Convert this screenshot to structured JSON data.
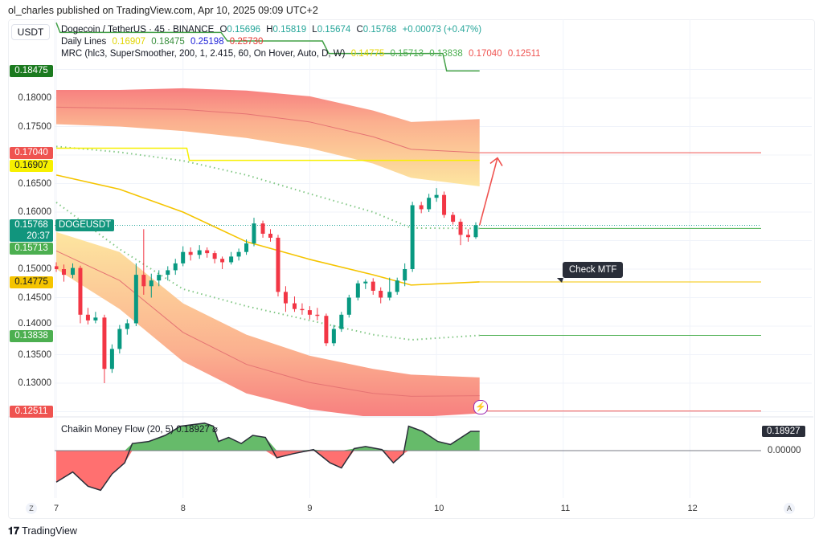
{
  "publisher": "ol_charles published on TradingView.com, Apr 10, 2025 09:09 UTC+2",
  "currency_button": "USDT",
  "symbol_legend": {
    "name": "Dogecoin / TetherUS · 45 · BINANCE",
    "o_label": "O",
    "o": "0.15696",
    "h_label": "H",
    "h": "0.15819",
    "l_label": "L",
    "l": "0.15674",
    "c_label": "C",
    "c": "0.15768",
    "change": "+0.00073 (+0.47%)"
  },
  "daily_lines_legend": {
    "name": "Daily Lines",
    "values": [
      "0.16907",
      "0.18475",
      "0.25198",
      "0.25730"
    ],
    "colors": [
      "#f2e600",
      "#388e3c",
      "#1e22d8",
      "#e53935"
    ]
  },
  "mrc_legend": {
    "name": "MRC (hlc3, SuperSmoother, 200, 1, 2.415, 60, On Hover, Auto, D, W)",
    "values": [
      "0.14775",
      "0.15713",
      "0.13838",
      "0.17040",
      "0.12511"
    ],
    "colors": [
      "#e6d600",
      "#4caf50",
      "#4caf50",
      "#ef5350",
      "#ef5350"
    ]
  },
  "symbol_tag": "DOGEUSDT",
  "annotation": "Check MTF",
  "price_axis_ticks": [
    "0.18000",
    "0.17500",
    "0.16500",
    "0.16000",
    "0.15000",
    "0.14500",
    "0.14000",
    "0.13500",
    "0.13000"
  ],
  "price_badges": [
    {
      "value": "0.18475",
      "color": "#1b7a1f"
    },
    {
      "value": "0.17040",
      "color": "#ef5350"
    },
    {
      "value": "0.16907",
      "color": "#f7f000",
      "text_color": "#131722"
    },
    {
      "value": "0.15768",
      "sub": "20:37",
      "color": "#11957d"
    },
    {
      "value": "0.15713",
      "color": "#4caf50"
    },
    {
      "value": "0.14775",
      "color": "#f5c400",
      "text_color": "#131722"
    },
    {
      "value": "0.13838",
      "color": "#4caf50"
    },
    {
      "value": "0.12511",
      "color": "#ef5350"
    }
  ],
  "time_axis_ticks": [
    "7",
    "8",
    "9",
    "10",
    "11",
    "12"
  ],
  "corner_buttons": {
    "left": "Z",
    "right": "A"
  },
  "cmf": {
    "title": "Chaikin Money Flow (20, 5)",
    "title_value": "0.18927",
    "current": "0.18927",
    "zero_label": "0.00000"
  },
  "branding": "TradingView",
  "colors": {
    "up": "#26a69a",
    "down": "#ef5350",
    "up_fill": "#089981",
    "down_fill": "#f23645",
    "cmf_pos": "#66bb6a",
    "cmf_neg": "#ff7070",
    "mean": "#f5c400",
    "arrow": "#ef5350",
    "lightning": "#9c27b0"
  },
  "chart_data": [
    {
      "type": "candlestick",
      "symbol": "DOGEUSDT",
      "interval": "45",
      "x_axis": "day of April 2025",
      "ylim": [
        0.124,
        0.186
      ],
      "xlim": [
        7,
        12.6
      ],
      "grid": true,
      "price_scale_side": "left",
      "candles_t_o_h_l_c": [
        [
          7.0,
          0.1505,
          0.1512,
          0.1495,
          0.15
        ],
        [
          7.06,
          0.15,
          0.1508,
          0.1478,
          0.149
        ],
        [
          7.13,
          0.149,
          0.151,
          0.1484,
          0.1502
        ],
        [
          7.19,
          0.1502,
          0.1506,
          0.1405,
          0.142
        ],
        [
          7.25,
          0.142,
          0.1432,
          0.1403,
          0.141
        ],
        [
          7.31,
          0.141,
          0.1425,
          0.1405,
          0.1415
        ],
        [
          7.38,
          0.1415,
          0.142,
          0.13,
          0.1325
        ],
        [
          7.44,
          0.1325,
          0.1368,
          0.1318,
          0.136
        ],
        [
          7.5,
          0.136,
          0.1402,
          0.1352,
          0.1395
        ],
        [
          7.56,
          0.1395,
          0.1412,
          0.1385,
          0.1405
        ],
        [
          7.63,
          0.1405,
          0.151,
          0.14,
          0.149
        ],
        [
          7.69,
          0.149,
          0.157,
          0.1455,
          0.147
        ],
        [
          7.75,
          0.147,
          0.1492,
          0.145,
          0.148
        ],
        [
          7.81,
          0.148,
          0.1498,
          0.147,
          0.149
        ],
        [
          7.88,
          0.149,
          0.1505,
          0.148,
          0.1498
        ],
        [
          7.94,
          0.1498,
          0.1518,
          0.149,
          0.151
        ],
        [
          8.0,
          0.151,
          0.154,
          0.1505,
          0.153
        ],
        [
          8.06,
          0.153,
          0.1538,
          0.1515,
          0.1525
        ],
        [
          8.13,
          0.1525,
          0.1542,
          0.1518,
          0.1533
        ],
        [
          8.19,
          0.1533,
          0.1538,
          0.152,
          0.1528
        ],
        [
          8.25,
          0.1528,
          0.1532,
          0.151,
          0.1518
        ],
        [
          8.31,
          0.1518,
          0.1522,
          0.15,
          0.1512
        ],
        [
          8.38,
          0.1512,
          0.153,
          0.1508,
          0.1522
        ],
        [
          8.44,
          0.1522,
          0.1536,
          0.1515,
          0.153
        ],
        [
          8.5,
          0.153,
          0.1552,
          0.1525,
          0.1545
        ],
        [
          8.56,
          0.1545,
          0.159,
          0.154,
          0.158
        ],
        [
          8.63,
          0.158,
          0.1585,
          0.1555,
          0.1562
        ],
        [
          8.69,
          0.1562,
          0.157,
          0.1548,
          0.1555
        ],
        [
          8.75,
          0.1555,
          0.156,
          0.1452,
          0.146
        ],
        [
          8.81,
          0.146,
          0.147,
          0.1425,
          0.144
        ],
        [
          8.88,
          0.144,
          0.1452,
          0.1425,
          0.143
        ],
        [
          8.94,
          0.143,
          0.144,
          0.142,
          0.1428
        ],
        [
          9.0,
          0.1428,
          0.1435,
          0.1412,
          0.142
        ],
        [
          9.06,
          0.142,
          0.1432,
          0.141,
          0.1418
        ],
        [
          9.13,
          0.1418,
          0.1422,
          0.1365,
          0.137
        ],
        [
          9.19,
          0.137,
          0.1402,
          0.1365,
          0.1395
        ],
        [
          9.25,
          0.1395,
          0.1425,
          0.139,
          0.142
        ],
        [
          9.31,
          0.142,
          0.1455,
          0.1415,
          0.145
        ],
        [
          9.38,
          0.145,
          0.148,
          0.1445,
          0.1475
        ],
        [
          9.44,
          0.1475,
          0.1482,
          0.1465,
          0.1478
        ],
        [
          9.5,
          0.1478,
          0.1484,
          0.1455,
          0.1462
        ],
        [
          9.56,
          0.1462,
          0.1468,
          0.144,
          0.145
        ],
        [
          9.63,
          0.145,
          0.1485,
          0.1445,
          0.146
        ],
        [
          9.69,
          0.146,
          0.1485,
          0.1455,
          0.148
        ],
        [
          9.75,
          0.148,
          0.151,
          0.147,
          0.15
        ],
        [
          9.81,
          0.15,
          0.1618,
          0.1495,
          0.1612
        ],
        [
          9.88,
          0.1612,
          0.1618,
          0.1598,
          0.1605
        ],
        [
          9.94,
          0.1605,
          0.1632,
          0.16,
          0.1625
        ],
        [
          10.0,
          0.1625,
          0.1642,
          0.1618,
          0.163
        ],
        [
          10.06,
          0.163,
          0.1636,
          0.159,
          0.1595
        ],
        [
          10.13,
          0.1595,
          0.16,
          0.1578,
          0.1583
        ],
        [
          10.19,
          0.1583,
          0.1588,
          0.1542,
          0.156
        ],
        [
          10.25,
          0.156,
          0.157,
          0.1548,
          0.1556
        ],
        [
          10.31,
          0.1556,
          0.1582,
          0.1553,
          0.1577
        ]
      ],
      "mrc": {
        "t": [
          7,
          7.5,
          8,
          8.5,
          9,
          9.5,
          9.8,
          10.34
        ],
        "upper_outer": [
          0.1814,
          0.1814,
          0.1817,
          0.1813,
          0.1803,
          0.1778,
          0.1758,
          0.1763
        ],
        "upper_inner": [
          0.1754,
          0.175,
          0.1742,
          0.173,
          0.1712,
          0.1685,
          0.166,
          0.1645
        ],
        "upper_mid": [
          0.1784,
          0.1782,
          0.178,
          0.1772,
          0.1758,
          0.1732,
          0.171,
          0.1704
        ],
        "mean": [
          0.1665,
          0.164,
          0.16,
          0.1548,
          0.1517,
          0.149,
          0.1472,
          0.14775
        ],
        "lower_inner": [
          0.1565,
          0.153,
          0.144,
          0.1385,
          0.1348,
          0.1325,
          0.1315,
          0.131
        ],
        "lower_mid": [
          0.1532,
          0.148,
          0.1389,
          0.1333,
          0.1301,
          0.1282,
          0.1277,
          0.1278
        ],
        "lower_outer": [
          0.15,
          0.143,
          0.1338,
          0.1282,
          0.1254,
          0.124,
          0.124,
          0.1247
        ],
        "upper_dotted": [
          0.1715,
          0.1705,
          0.169,
          0.1665,
          0.1632,
          0.16,
          0.1572,
          0.15713
        ],
        "lower_dotted": [
          0.1617,
          0.1535,
          0.1465,
          0.1435,
          0.141,
          0.1385,
          0.1376,
          0.13838
        ]
      },
      "daily_yellow": [
        [
          7,
          0.1712
        ],
        [
          8.03,
          0.1712
        ],
        [
          8.05,
          0.16907
        ],
        [
          10.34,
          0.16907
        ]
      ],
      "daily_green": [
        [
          7,
          0.1932
        ],
        [
          7.03,
          0.1915
        ],
        [
          8.3,
          0.1915
        ],
        [
          8.35,
          0.19
        ],
        [
          9.1,
          0.19
        ],
        [
          9.15,
          0.1878
        ],
        [
          10.05,
          0.1878
        ],
        [
          10.08,
          0.18475
        ],
        [
          10.34,
          0.18475
        ]
      ],
      "levels": [
        {
          "value": 0.1704,
          "color": "#ef5350"
        },
        {
          "value": 0.15713,
          "color": "#4caf50"
        },
        {
          "value": 0.14775,
          "color": "#f5c400"
        },
        {
          "value": 0.13838,
          "color": "#4caf50"
        },
        {
          "value": 0.12511,
          "color": "#ef5350"
        }
      ],
      "last_price": 0.15768,
      "projection_arrow": {
        "from": [
          10.34,
          0.1577
        ],
        "to": [
          10.5,
          0.1695
        ]
      }
    },
    {
      "type": "area",
      "title": "Chaikin Money Flow (20, 5)",
      "baseline": 0,
      "points_t_v": [
        [
          7.0,
          -0.31
        ],
        [
          7.13,
          -0.21
        ],
        [
          7.25,
          -0.35
        ],
        [
          7.35,
          -0.39
        ],
        [
          7.44,
          -0.23
        ],
        [
          7.54,
          -0.12
        ],
        [
          7.6,
          0.07
        ],
        [
          7.73,
          0.09
        ],
        [
          7.86,
          0.15
        ],
        [
          7.98,
          0.24
        ],
        [
          8.17,
          0.27
        ],
        [
          8.24,
          0.24
        ],
        [
          8.28,
          0.09
        ],
        [
          8.36,
          0.13
        ],
        [
          8.46,
          0.07
        ],
        [
          8.55,
          0.15
        ],
        [
          8.65,
          0.13
        ],
        [
          8.74,
          -0.07
        ],
        [
          8.87,
          -0.03
        ],
        [
          9.03,
          0.01
        ],
        [
          9.16,
          -0.12
        ],
        [
          9.25,
          -0.17
        ],
        [
          9.35,
          0.02
        ],
        [
          9.44,
          0.04
        ],
        [
          9.57,
          0.01
        ],
        [
          9.66,
          -0.12
        ],
        [
          9.74,
          -0.03
        ],
        [
          9.78,
          0.24
        ],
        [
          9.89,
          0.19
        ],
        [
          10.01,
          0.09
        ],
        [
          10.11,
          0.06
        ],
        [
          10.27,
          0.19
        ],
        [
          10.34,
          0.18927
        ]
      ]
    }
  ]
}
